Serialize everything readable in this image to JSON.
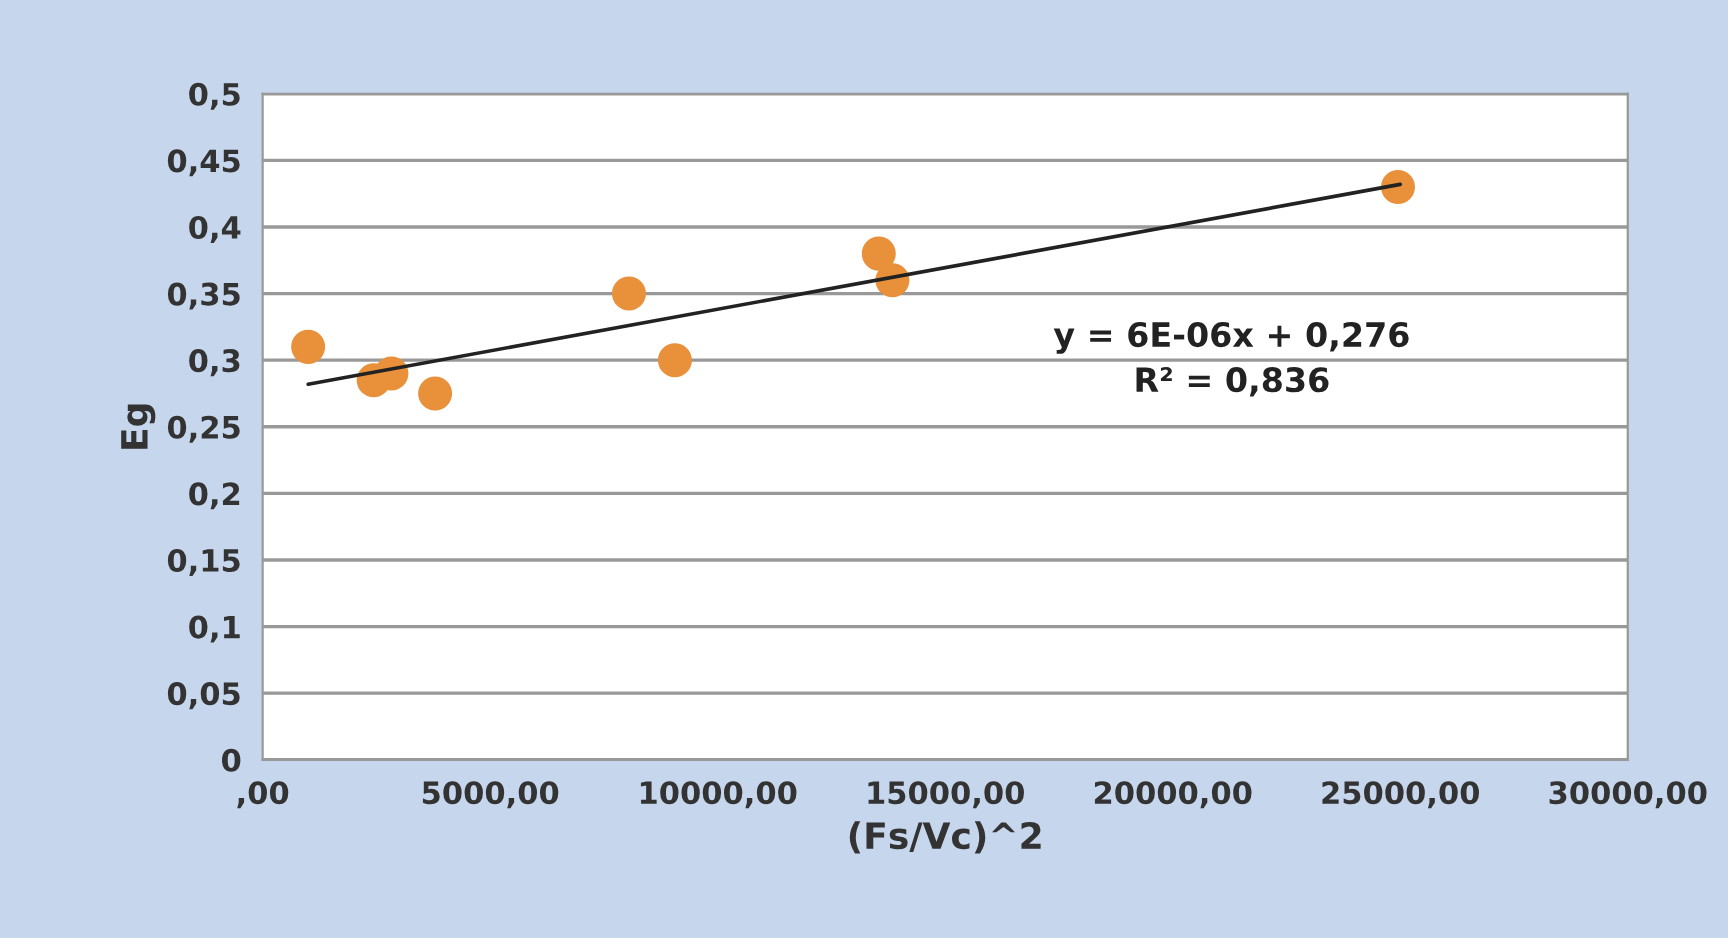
{
  "chart_data": {
    "type": "scatter",
    "xlabel": "(Fs/Vc)^2",
    "ylabel": "Eg",
    "x": [
      1000,
      2440,
      2830,
      3790,
      8050,
      9060,
      13540,
      13840,
      24950
    ],
    "series": [
      {
        "color": "#e8913a",
        "values": [
          0.31,
          0.285,
          0.29,
          0.275,
          0.35,
          0.3,
          0.38,
          0.36,
          0.43
        ],
        "marker": "circle"
      },
      {
        "type": "line",
        "color": "#222222",
        "x": [
          1000,
          25000
        ],
        "values": [
          0.282,
          0.432
        ],
        "line_style": "solid",
        "marker": "none"
      }
    ],
    "annotations": [
      "y = 6E-06x + 0,276\nR² = 0,836"
    ],
    "xlim": [
      0,
      30000
    ],
    "xticks": [
      {
        "value": 0,
        "label": ",00"
      },
      {
        "value": 5000,
        "label": "5000,00"
      },
      {
        "value": 10000,
        "label": "10000,00"
      },
      {
        "value": 15000,
        "label": "15000,00"
      },
      {
        "value": 20000,
        "label": "20000,00"
      },
      {
        "value": 25000,
        "label": "25000,00"
      },
      {
        "value": 30000,
        "label": "30000,00"
      }
    ],
    "ylim": [
      0,
      0.5
    ],
    "yticks": [
      0,
      {
        "value": 0.05,
        "label": "0,05"
      },
      {
        "value": 0.1,
        "label": "0,1"
      },
      {
        "value": 0.15,
        "label": "0,15"
      },
      {
        "value": 0.2,
        "label": "0,2"
      },
      {
        "value": 0.25,
        "label": "0,25"
      },
      {
        "value": 0.3,
        "label": "0,3"
      },
      {
        "value": 0.35,
        "label": "0,35"
      },
      {
        "value": 0.4,
        "label": "0,4"
      },
      {
        "value": 0.45,
        "label": "0,45"
      },
      {
        "value": 0.5,
        "label": "0,5"
      }
    ],
    "grid": "y",
    "legend": false
  }
}
